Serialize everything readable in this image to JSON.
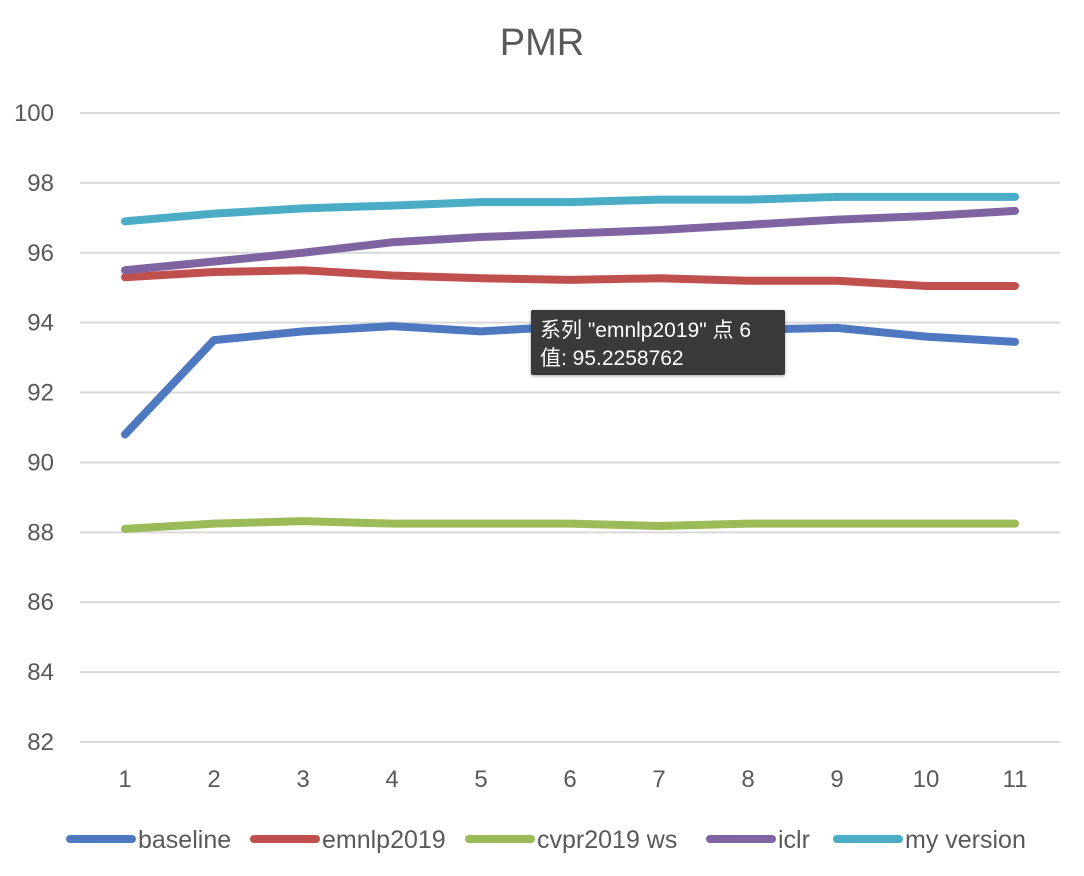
{
  "chart_data": {
    "type": "line",
    "title": "PMR",
    "xlabel": "",
    "ylabel": "",
    "categories": [
      "1",
      "2",
      "3",
      "4",
      "5",
      "6",
      "7",
      "8",
      "9",
      "10",
      "11"
    ],
    "ylim": [
      82,
      100
    ],
    "yticks": [
      "82",
      "84",
      "86",
      "88",
      "90",
      "92",
      "94",
      "96",
      "98",
      "100"
    ],
    "grid": true,
    "legend_position": "bottom",
    "series": [
      {
        "name": "baseline",
        "color": "#4e79c0",
        "values": [
          90.8,
          93.5,
          93.75,
          93.9,
          93.75,
          93.9,
          93.85,
          93.8,
          93.85,
          93.6,
          93.45
        ]
      },
      {
        "name": "emnlp2019",
        "color": "#c0504d",
        "values": [
          95.3,
          95.45,
          95.5,
          95.35,
          95.27,
          95.2258762,
          95.27,
          95.2,
          95.2,
          95.05,
          95.05
        ]
      },
      {
        "name": "cvpr2019 ws",
        "color": "#9bbb59",
        "values": [
          88.1,
          88.25,
          88.32,
          88.25,
          88.25,
          88.25,
          88.18,
          88.25,
          88.25,
          88.25,
          88.25
        ]
      },
      {
        "name": "iclr",
        "color": "#8064a2",
        "values": [
          95.5,
          95.75,
          96.0,
          96.3,
          96.45,
          96.55,
          96.65,
          96.8,
          96.95,
          97.05,
          97.2
        ]
      },
      {
        "name": "my version",
        "color": "#4bacc6",
        "values": [
          96.9,
          97.12,
          97.27,
          97.35,
          97.45,
          97.45,
          97.52,
          97.52,
          97.6,
          97.6,
          97.6
        ]
      }
    ],
    "tooltip": {
      "line1": "系列 \"emnlp2019\" 点 6",
      "line2": "值: 95.2258762"
    }
  }
}
